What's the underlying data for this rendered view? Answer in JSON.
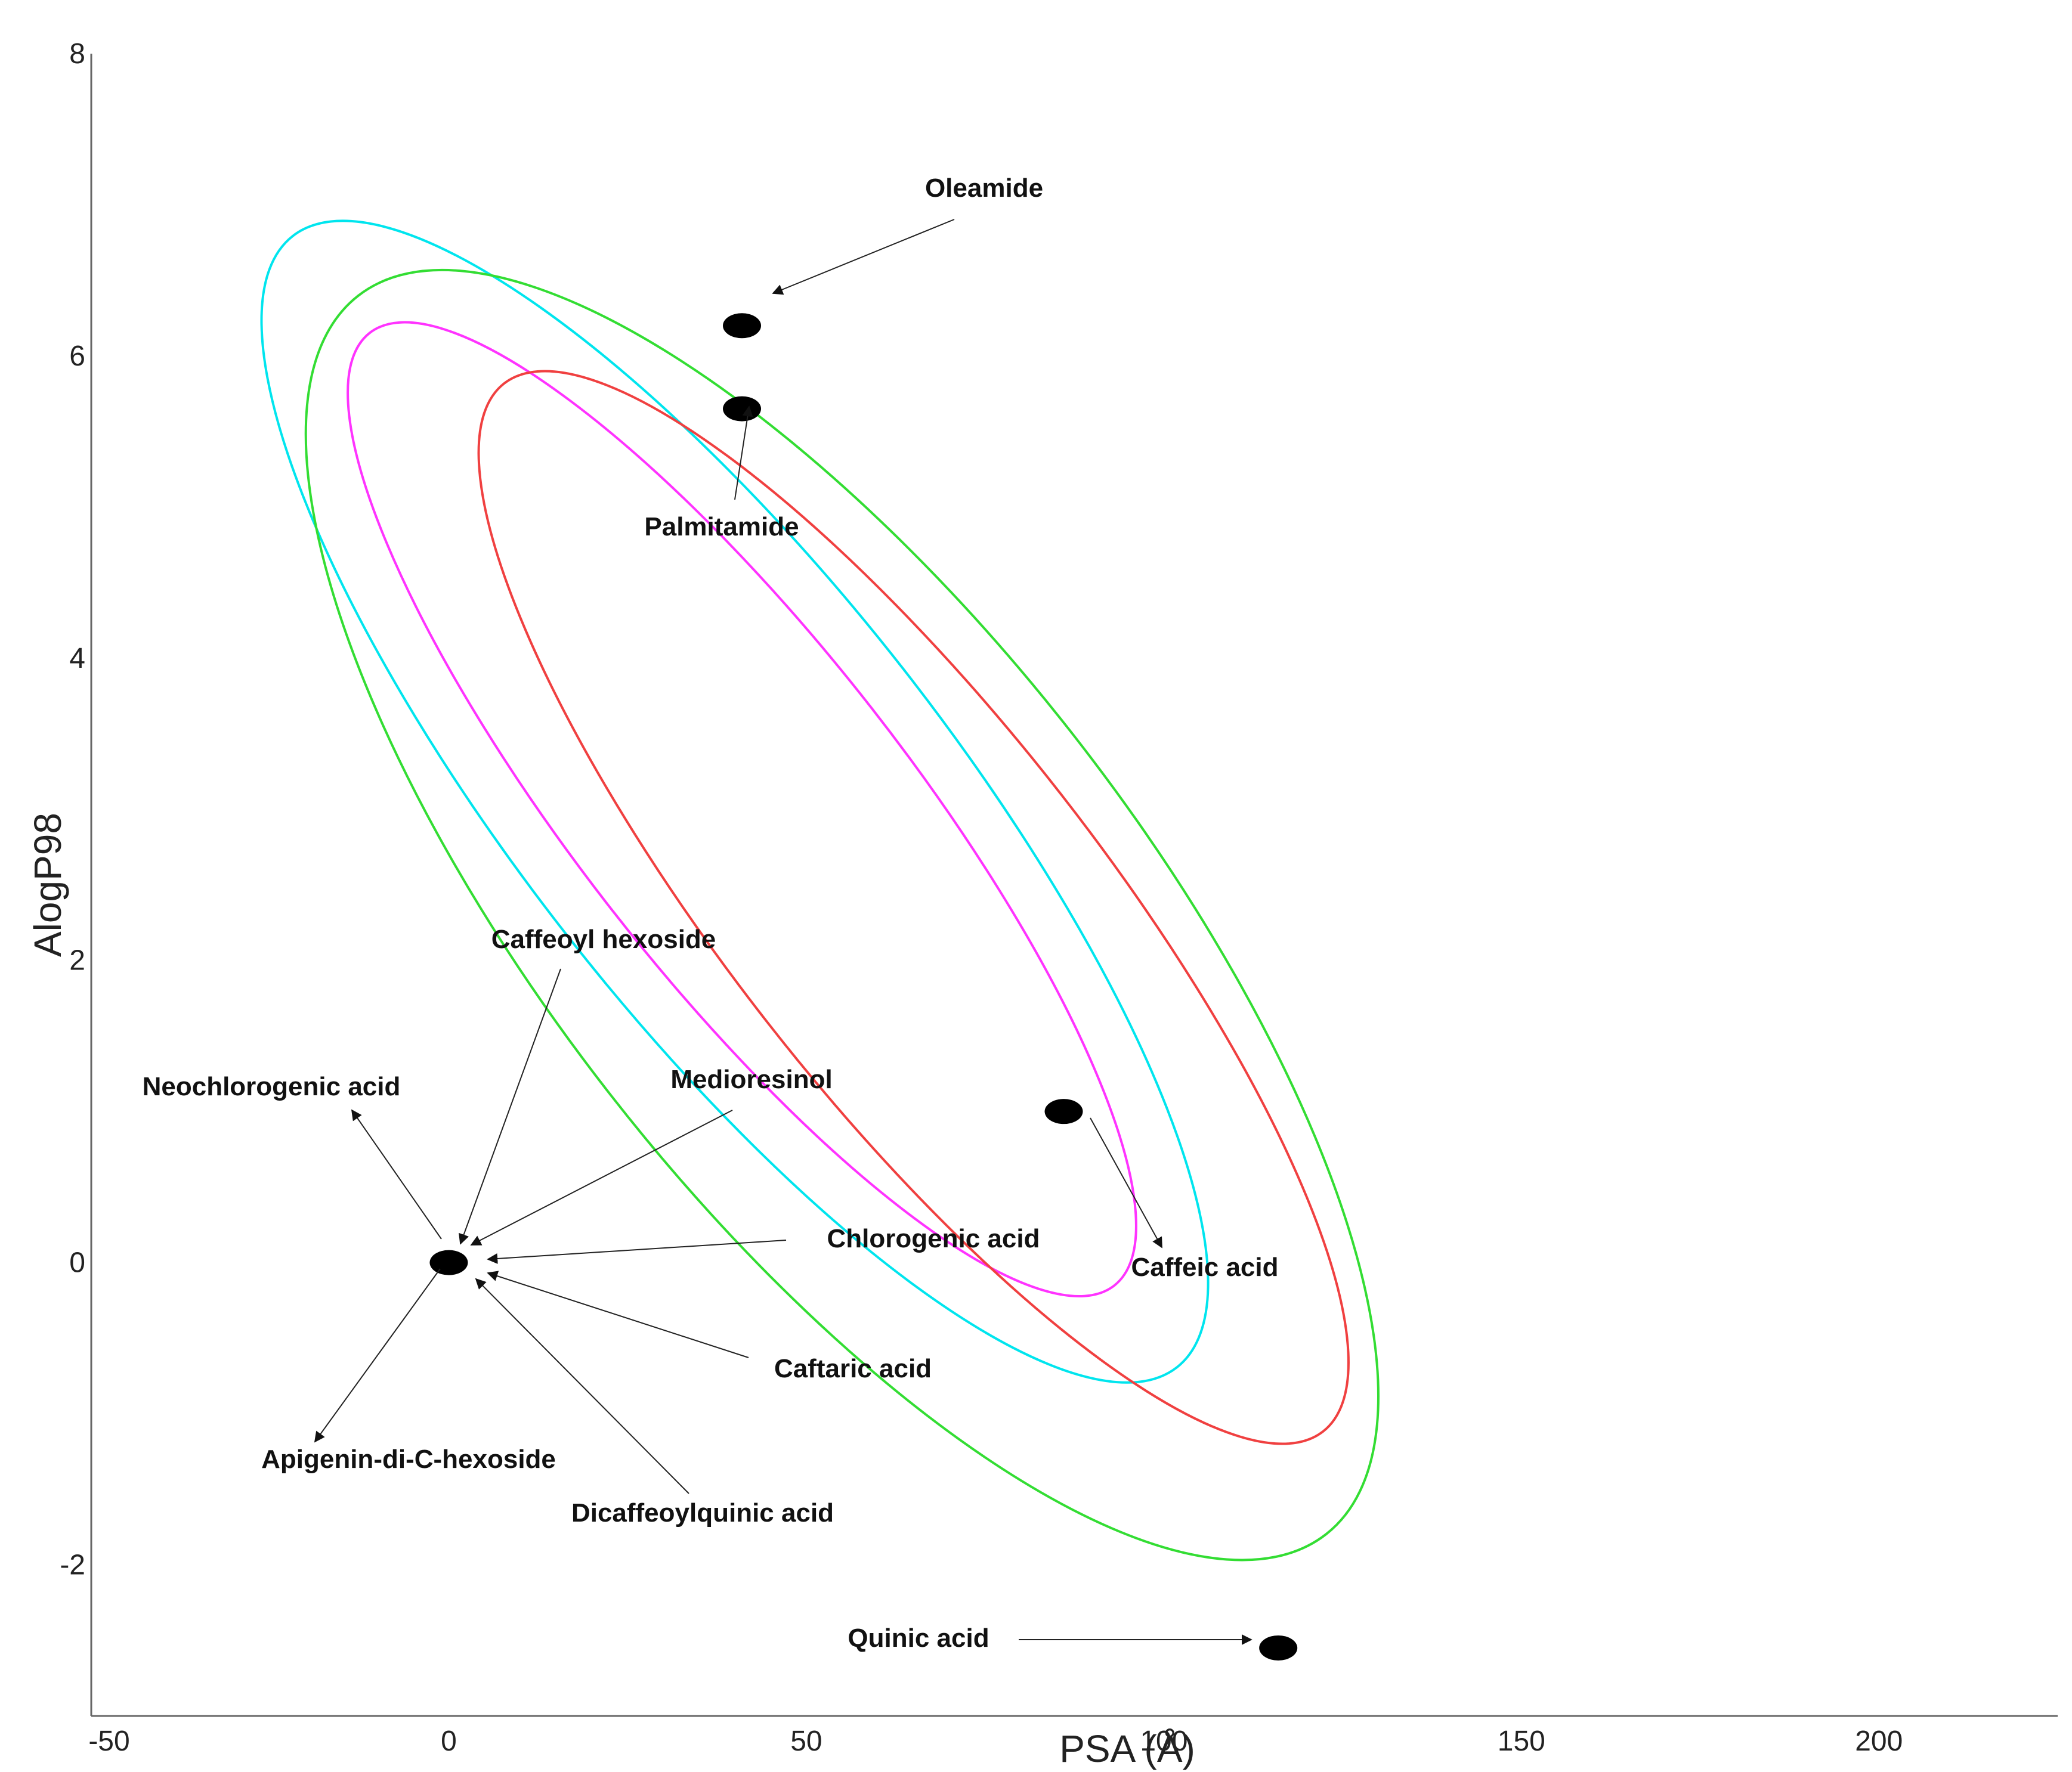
{
  "chart_data": {
    "type": "scatter",
    "title": "",
    "xlabel": "PSA (Å)",
    "ylabel": "AlogP98",
    "xlim": [
      -50,
      225
    ],
    "ylim": [
      -3,
      8
    ],
    "x_ticks": [
      "-50",
      "0",
      "50",
      "100",
      "150",
      "200"
    ],
    "y_ticks": [
      "-2",
      "0",
      "2",
      "4",
      "6",
      "8"
    ],
    "grid": false,
    "points": [
      {
        "label": "Oleamide",
        "x": 41,
        "y": 6.2
      },
      {
        "label": "Palmitamide",
        "x": 41,
        "y": 5.65
      },
      {
        "label": "Caffeic acid",
        "x": 86,
        "y": 1.0
      },
      {
        "label": "Quinic acid",
        "x": 116,
        "y": -2.55
      },
      {
        "label": "Neochlorogenic acid",
        "x": 0,
        "y": 0
      },
      {
        "label": "Caffeoyl hexoside",
        "x": 0,
        "y": 0
      },
      {
        "label": "Medioresinol",
        "x": 0,
        "y": 0
      },
      {
        "label": "Chlorogenic acid",
        "x": 0,
        "y": 0
      },
      {
        "label": "Caftaric acid",
        "x": 0,
        "y": 0
      },
      {
        "label": "Apigenin-di-C-hexoside",
        "x": 0,
        "y": 0
      },
      {
        "label": "Dicaffeoylquinic acid",
        "x": 0,
        "y": 0
      }
    ],
    "ellipses": [
      {
        "color": "#00e5ee",
        "cx": 40,
        "cy": 3.05,
        "rx": 30,
        "ry": 4.75,
        "tilt_deg": -38
      },
      {
        "color": "#33dd33",
        "cx": 55,
        "cy": 2.3,
        "rx": 41,
        "ry": 5.2,
        "tilt_deg": -38
      },
      {
        "color": "#ff33ff",
        "cx": 41,
        "cy": 3.0,
        "rx": 23,
        "ry": 4.0,
        "tilt_deg": -38
      },
      {
        "color": "#f04040",
        "cx": 65,
        "cy": 2.35,
        "rx": 26,
        "ry": 4.4,
        "tilt_deg": -38
      }
    ]
  }
}
